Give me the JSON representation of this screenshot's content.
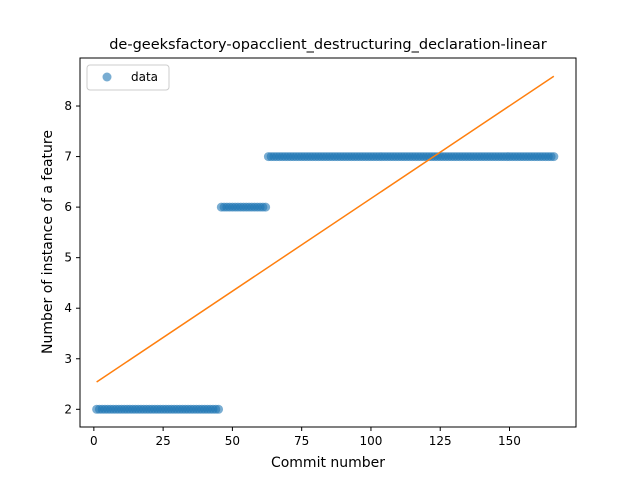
{
  "chart_data": {
    "type": "scatter",
    "title": "de-geeksfactory-opacclient_destructuring_declaration-linear",
    "xlabel": "Commit number",
    "ylabel": "Number of instance of a feature",
    "xlim": [
      -5,
      174
    ],
    "ylim": [
      1.65,
      8.95
    ],
    "xticks": [
      0,
      25,
      50,
      75,
      100,
      125,
      150
    ],
    "yticks": [
      2,
      3,
      4,
      5,
      6,
      7,
      8
    ],
    "legend": {
      "position": "top-left",
      "entries": [
        "data"
      ]
    },
    "colors": {
      "data": "#1f77b4",
      "fit": "#ff7f0e"
    },
    "grid": false,
    "series": [
      {
        "name": "data",
        "kind": "scatter",
        "segments": [
          {
            "x_start": 1,
            "x_end": 45,
            "y": 2
          },
          {
            "x_start": 46,
            "x_end": 62,
            "y": 6
          },
          {
            "x_start": 63,
            "x_end": 166,
            "y": 7
          }
        ]
      },
      {
        "kind": "line",
        "x": [
          1,
          166
        ],
        "y": [
          2.54,
          8.59
        ]
      }
    ]
  }
}
